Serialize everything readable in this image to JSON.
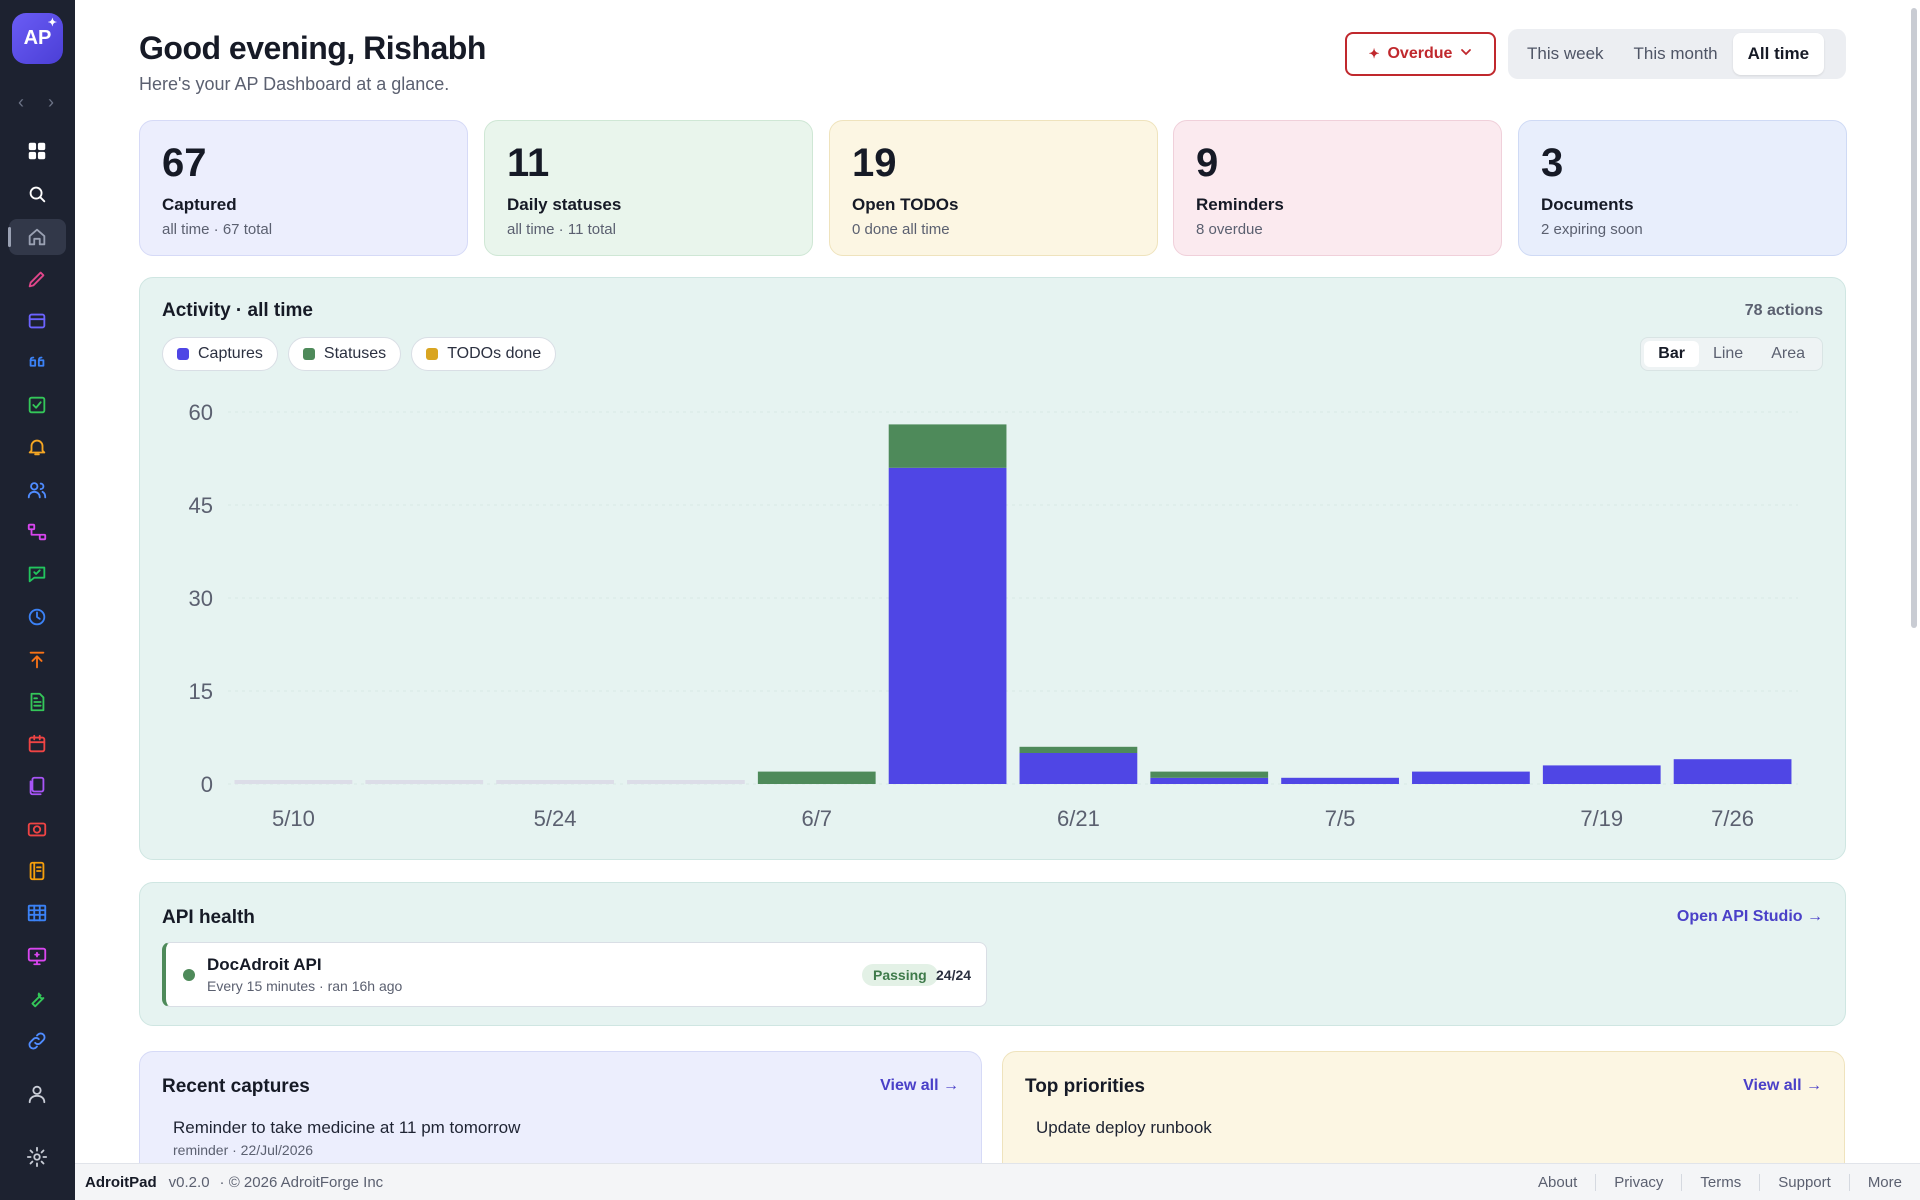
{
  "sidebar": {
    "logo_text": "AP",
    "nav_back": "‹",
    "nav_forward": "›",
    "items": [
      {
        "icon": "grid-icon",
        "color": "#ffffff"
      },
      {
        "icon": "search-icon",
        "color": "#ffffff"
      },
      {
        "icon": "home-icon",
        "color": "#9aa1b3"
      },
      {
        "icon": "pencil-icon",
        "color": "#e0468a"
      },
      {
        "icon": "inbox-icon",
        "color": "#6c63ff"
      },
      {
        "icon": "quote-icon",
        "color": "#3b82f6"
      },
      {
        "icon": "checkbox-icon",
        "color": "#34c759"
      },
      {
        "icon": "bell-icon",
        "color": "#f5a623"
      },
      {
        "icon": "users-icon",
        "color": "#4f8cff"
      },
      {
        "icon": "flow-icon",
        "color": "#d946ef"
      },
      {
        "icon": "chat-icon",
        "color": "#22c55e"
      },
      {
        "icon": "clock-icon",
        "color": "#3b82f6"
      },
      {
        "icon": "upload-icon",
        "color": "#f97316"
      },
      {
        "icon": "document-icon",
        "color": "#34c759"
      },
      {
        "icon": "calendar-icon",
        "color": "#ef4444"
      },
      {
        "icon": "files-icon",
        "color": "#a855f7"
      },
      {
        "icon": "camera-icon",
        "color": "#ef4444"
      },
      {
        "icon": "notebook-icon",
        "color": "#f59e0b"
      },
      {
        "icon": "table-icon",
        "color": "#3b82f6"
      },
      {
        "icon": "screen-icon",
        "color": "#d946ef"
      },
      {
        "icon": "wrench-icon",
        "color": "#34c759"
      },
      {
        "icon": "link-icon",
        "color": "#4f8cff"
      },
      {
        "icon": "user-icon",
        "color": "#c9cdd6"
      },
      {
        "icon": "settings-icon",
        "color": "#c9cdd6"
      }
    ]
  },
  "header": {
    "greeting": "Good evening, Rishabh",
    "subtitle": "Here's your AP Dashboard at a glance.",
    "overdue_label": "Overdue",
    "range_options": [
      "This week",
      "This month",
      "All time"
    ],
    "range_selected": "All time"
  },
  "stats": [
    {
      "value": "67",
      "label": "Captured",
      "sub": "all time · 67 total",
      "bg": "#eceefd",
      "border": "#d6daf7"
    },
    {
      "value": "11",
      "label": "Daily statuses",
      "sub": "all time · 11 total",
      "bg": "#e9f5ec",
      "border": "#cfe7d5"
    },
    {
      "value": "19",
      "label": "Open TODOs",
      "sub": "0 done all time",
      "bg": "#fcf6e3",
      "border": "#efe3bd"
    },
    {
      "value": "9",
      "label": "Reminders",
      "sub": "8 overdue",
      "bg": "#fbeaef",
      "border": "#f0d0da"
    },
    {
      "value": "3",
      "label": "Documents",
      "sub": "2 expiring soon",
      "bg": "#e8eefc",
      "border": "#cfdaf5"
    }
  ],
  "activity": {
    "title": "Activity · all time",
    "count": "78 actions",
    "legend": [
      {
        "name": "Captures",
        "color": "#4f46e5"
      },
      {
        "name": "Statuses",
        "color": "#4e8a5a"
      },
      {
        "name": "TODOs done",
        "color": "#d9a521"
      }
    ],
    "chart_types": [
      "Bar",
      "Line",
      "Area"
    ],
    "chart_type_selected": "Bar"
  },
  "chart_data": {
    "type": "bar",
    "stacked": true,
    "categories": [
      "5/10",
      "5/17",
      "5/24",
      "5/31",
      "6/7",
      "6/14",
      "6/21",
      "6/28",
      "7/5",
      "7/12",
      "7/19",
      "7/26"
    ],
    "x_tick_labels": [
      "5/10",
      "",
      "5/24",
      "",
      "6/7",
      "",
      "6/21",
      "",
      "7/5",
      "",
      "7/19",
      "7/26"
    ],
    "series": [
      {
        "name": "Captures",
        "values": [
          0,
          0,
          0,
          0,
          0,
          51,
          5,
          1,
          1,
          2,
          3,
          4
        ]
      },
      {
        "name": "Statuses",
        "values": [
          0,
          0,
          0,
          0,
          2,
          7,
          1,
          1,
          0,
          0,
          0,
          0
        ]
      },
      {
        "name": "TODOs done",
        "values": [
          0,
          0,
          0,
          0,
          0,
          0,
          0,
          0,
          0,
          0,
          0,
          0
        ]
      }
    ],
    "ylim": [
      0,
      60
    ],
    "yticks": [
      0,
      15,
      30,
      45,
      60
    ],
    "grid": true
  },
  "api_health": {
    "title": "API health",
    "link": "Open API Studio →",
    "items": [
      {
        "name": "DocAdroit API",
        "schedule": "Every 15 minutes · ran 16h ago",
        "status": "Passing",
        "ratio": "24/24"
      }
    ]
  },
  "recent_captures": {
    "title": "Recent captures",
    "link": "View all →",
    "items": [
      {
        "text": "Reminder to take medicine at 11 pm tomorrow",
        "meta": "reminder · 22/Jul/2026"
      }
    ]
  },
  "top_priorities": {
    "title": "Top priorities",
    "link": "View all →",
    "items": [
      "Update deploy runbook"
    ]
  },
  "footer": {
    "brand": "AdroitPad",
    "version": "v0.2.0",
    "copyright": "· © 2026 AdroitForge Inc",
    "links": [
      "About",
      "Privacy",
      "Terms",
      "Support",
      "More"
    ]
  }
}
